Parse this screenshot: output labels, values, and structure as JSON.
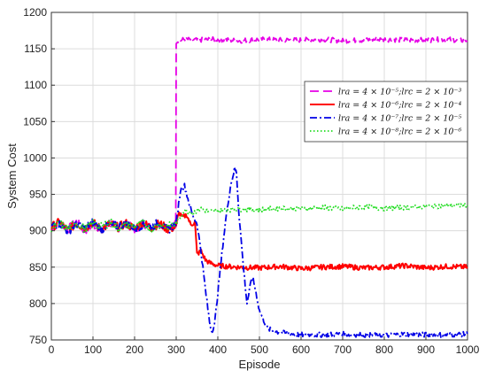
{
  "chart_data": {
    "type": "line",
    "title": "",
    "xlabel": "Episode",
    "ylabel": "System Cost",
    "xlim": [
      0,
      1000
    ],
    "ylim": [
      750,
      1200
    ],
    "xticks": [
      0,
      100,
      200,
      300,
      400,
      500,
      600,
      700,
      800,
      900,
      1000
    ],
    "yticks": [
      750,
      800,
      850,
      900,
      950,
      1000,
      1050,
      1100,
      1150,
      1200
    ],
    "grid": true,
    "legend_position": "upper-right",
    "series": [
      {
        "name": "lr_a = 4×10^-5; lr_c = 2×10^-3",
        "legend_label": "lra = 4 × 10⁻⁵;lrc = 2 × 10⁻³",
        "color": "#e600e6",
        "dash": "long-dash",
        "points": [
          [
            0,
            905
          ],
          [
            20,
            910
          ],
          [
            40,
            902
          ],
          [
            60,
            912
          ],
          [
            80,
            900
          ],
          [
            100,
            908
          ],
          [
            120,
            903
          ],
          [
            140,
            911
          ],
          [
            160,
            904
          ],
          [
            180,
            909
          ],
          [
            200,
            902
          ],
          [
            220,
            910
          ],
          [
            240,
            904
          ],
          [
            260,
            911
          ],
          [
            280,
            903
          ],
          [
            295,
            908
          ],
          [
            299,
            910
          ],
          [
            300,
            1160
          ],
          [
            320,
            1163
          ],
          [
            350,
            1162
          ],
          [
            400,
            1163
          ],
          [
            450,
            1161
          ],
          [
            500,
            1163
          ],
          [
            550,
            1162
          ],
          [
            600,
            1162
          ],
          [
            650,
            1163
          ],
          [
            700,
            1161
          ],
          [
            750,
            1162
          ],
          [
            800,
            1163
          ],
          [
            850,
            1162
          ],
          [
            900,
            1162
          ],
          [
            950,
            1163
          ],
          [
            1000,
            1161
          ]
        ]
      },
      {
        "name": "lr_a = 4×10^-6; lr_c = 2×10^-4",
        "legend_label": "lra = 4 × 10⁻⁶;lrc = 2 × 10⁻⁴",
        "color": "#ff0000",
        "dash": "solid",
        "points": [
          [
            0,
            905
          ],
          [
            20,
            912
          ],
          [
            40,
            900
          ],
          [
            60,
            910
          ],
          [
            80,
            904
          ],
          [
            100,
            911
          ],
          [
            120,
            902
          ],
          [
            140,
            909
          ],
          [
            160,
            905
          ],
          [
            180,
            910
          ],
          [
            200,
            903
          ],
          [
            220,
            911
          ],
          [
            240,
            904
          ],
          [
            260,
            910
          ],
          [
            280,
            902
          ],
          [
            300,
            905
          ],
          [
            305,
            925
          ],
          [
            315,
            918
          ],
          [
            325,
            922
          ],
          [
            335,
            908
          ],
          [
            345,
            912
          ],
          [
            350,
            868
          ],
          [
            360,
            872
          ],
          [
            370,
            860
          ],
          [
            380,
            856
          ],
          [
            400,
            852
          ],
          [
            450,
            850
          ],
          [
            500,
            849
          ],
          [
            550,
            851
          ],
          [
            600,
            848
          ],
          [
            650,
            850
          ],
          [
            700,
            851
          ],
          [
            750,
            849
          ],
          [
            800,
            850
          ],
          [
            850,
            852
          ],
          [
            900,
            849
          ],
          [
            950,
            851
          ],
          [
            1000,
            850
          ]
        ]
      },
      {
        "name": "lr_a = 4×10^-7; lr_c = 2×10^-5",
        "legend_label": "lra = 4 × 10⁻⁷;lrc = 2 × 10⁻⁵",
        "color": "#0000e6",
        "dash": "dash-dot",
        "points": [
          [
            0,
            906
          ],
          [
            20,
            911
          ],
          [
            40,
            899
          ],
          [
            60,
            910
          ],
          [
            80,
            903
          ],
          [
            100,
            912
          ],
          [
            120,
            901
          ],
          [
            140,
            908
          ],
          [
            160,
            906
          ],
          [
            180,
            911
          ],
          [
            200,
            902
          ],
          [
            220,
            909
          ],
          [
            240,
            905
          ],
          [
            260,
            912
          ],
          [
            280,
            901
          ],
          [
            300,
            910
          ],
          [
            310,
            955
          ],
          [
            320,
            962
          ],
          [
            330,
            940
          ],
          [
            340,
            920
          ],
          [
            350,
            910
          ],
          [
            360,
            870
          ],
          [
            370,
            820
          ],
          [
            380,
            775
          ],
          [
            385,
            762
          ],
          [
            392,
            770
          ],
          [
            400,
            815
          ],
          [
            410,
            870
          ],
          [
            420,
            920
          ],
          [
            430,
            960
          ],
          [
            440,
            985
          ],
          [
            445,
            980
          ],
          [
            450,
            930
          ],
          [
            460,
            860
          ],
          [
            470,
            800
          ],
          [
            480,
            830
          ],
          [
            485,
            833
          ],
          [
            490,
            820
          ],
          [
            500,
            790
          ],
          [
            520,
            765
          ],
          [
            550,
            760
          ],
          [
            600,
            757
          ],
          [
            650,
            757
          ],
          [
            700,
            758
          ],
          [
            750,
            757
          ],
          [
            800,
            756
          ],
          [
            850,
            758
          ],
          [
            900,
            757
          ],
          [
            950,
            757
          ],
          [
            1000,
            758
          ]
        ]
      },
      {
        "name": "lr_a = 4×10^-8; lr_c = 2×10^-6",
        "legend_label": "lra = 4 × 10⁻⁸;lrc = 2 × 10⁻⁶",
        "color": "#22dd22",
        "dash": "dotted",
        "points": [
          [
            0,
            904
          ],
          [
            20,
            909
          ],
          [
            40,
            903
          ],
          [
            60,
            911
          ],
          [
            80,
            902
          ],
          [
            100,
            910
          ],
          [
            120,
            905
          ],
          [
            140,
            912
          ],
          [
            160,
            903
          ],
          [
            180,
            908
          ],
          [
            200,
            906
          ],
          [
            220,
            911
          ],
          [
            240,
            902
          ],
          [
            260,
            909
          ],
          [
            280,
            905
          ],
          [
            300,
            910
          ],
          [
            320,
            928
          ],
          [
            340,
            925
          ],
          [
            360,
            930
          ],
          [
            380,
            926
          ],
          [
            400,
            928
          ],
          [
            450,
            930
          ],
          [
            500,
            929
          ],
          [
            550,
            931
          ],
          [
            600,
            930
          ],
          [
            650,
            932
          ],
          [
            700,
            930
          ],
          [
            750,
            933
          ],
          [
            800,
            931
          ],
          [
            850,
            932
          ],
          [
            900,
            933
          ],
          [
            950,
            935
          ],
          [
            1000,
            935
          ]
        ]
      }
    ]
  }
}
